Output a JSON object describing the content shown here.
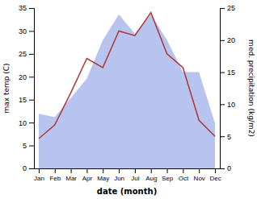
{
  "chart_data": {
    "type": "line",
    "categories": [
      "Jan",
      "Feb",
      "Mar",
      "Apr",
      "May",
      "Jun",
      "Jul",
      "Aug",
      "Sep",
      "Oct",
      "Nov",
      "Dec"
    ],
    "xlabel": "date (month)",
    "ylabel": "max temp (C)",
    "y2label": "med. precipitation (kg/m2)",
    "series": [
      {
        "type": "area",
        "axis": "y2",
        "color": "#b8c4f0",
        "values": [
          8.5,
          8.0,
          11.0,
          14.0,
          20.0,
          24.0,
          21.0,
          24.0,
          20.0,
          15.0,
          15.0,
          7.0
        ]
      },
      {
        "type": "line",
        "color": "#b03535",
        "values": [
          6.5,
          9.5,
          16.5,
          24.0,
          22.0,
          30.0,
          29.0,
          34.0,
          25.0,
          22.0,
          10.5,
          7.0
        ]
      }
    ],
    "ylim": [
      0,
      35
    ],
    "yticks": [
      0,
      5,
      10,
      15,
      20,
      25,
      30,
      35
    ],
    "y2lim": [
      0,
      25
    ],
    "y2ticks": [
      0,
      5,
      10,
      15,
      20,
      25
    ],
    "grid": false
  }
}
